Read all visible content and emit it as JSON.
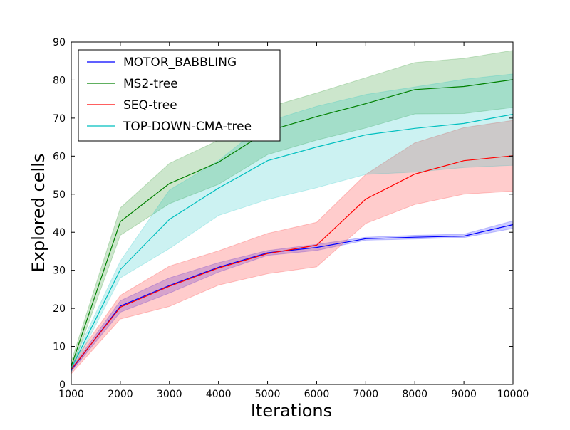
{
  "chart_data": {
    "type": "line",
    "title": "",
    "xlabel": "Iterations",
    "ylabel": "Explored cells",
    "xlim": [
      1000,
      10000
    ],
    "ylim": [
      0,
      90
    ],
    "xticks": [
      1000,
      2000,
      3000,
      4000,
      5000,
      6000,
      7000,
      8000,
      9000,
      10000
    ],
    "yticks": [
      0,
      10,
      20,
      30,
      40,
      50,
      60,
      70,
      80,
      90
    ],
    "grid": false,
    "legend_position": "top-left",
    "x": [
      1000,
      2000,
      3000,
      4000,
      5000,
      6000,
      7000,
      8000,
      9000,
      10000
    ],
    "series": [
      {
        "name": "MOTOR_BABBLING",
        "color": "#0000ff",
        "values": [
          3.8,
          20.6,
          26,
          30.8,
          34.6,
          36,
          38.3,
          38.7,
          39,
          42
        ],
        "lower": [
          3.4,
          19.0,
          24,
          29.5,
          33.9,
          35.2,
          37.9,
          38.2,
          38.6,
          41.0
        ],
        "upper": [
          4.2,
          22.0,
          28,
          32.0,
          35.2,
          36.8,
          38.7,
          39.2,
          39.5,
          43.0
        ]
      },
      {
        "name": "MS2-tree",
        "color": "#008000",
        "values": [
          4.8,
          42.8,
          52.8,
          58.4,
          66.6,
          70.4,
          73.8,
          77.5,
          78.3,
          80.1
        ],
        "lower": [
          3.6,
          39.2,
          47.5,
          52.6,
          60.4,
          64.2,
          67.4,
          71.1,
          71.2,
          72.8
        ],
        "upper": [
          6.0,
          46.4,
          58.1,
          64.2,
          72.8,
          76.6,
          80.6,
          84.6,
          85.7,
          87.8
        ]
      },
      {
        "name": "SEQ-tree",
        "color": "#ff0000",
        "values": [
          4.0,
          20.3,
          25.8,
          30.6,
          34.4,
          36.6,
          48.7,
          55.3,
          58.8,
          60.1
        ],
        "lower": [
          2.8,
          17.2,
          20.5,
          26.1,
          29.1,
          30.9,
          42.3,
          47.3,
          50.0,
          50.8
        ],
        "upper": [
          5.2,
          23.4,
          31.1,
          35.1,
          39.7,
          42.6,
          55.2,
          63.5,
          67.5,
          69.4
        ]
      },
      {
        "name": "TOP-DOWN-CMA-tree",
        "color": "#00bfbf",
        "values": [
          4.2,
          30.2,
          43.4,
          51.6,
          58.8,
          62.4,
          65.6,
          67.3,
          68.6,
          71.0
        ],
        "lower": [
          3.2,
          28.0,
          35.7,
          44.4,
          48.6,
          51.7,
          55.2,
          55.8,
          57.0,
          57.6
        ],
        "upper": [
          5.2,
          32.4,
          51.1,
          58.8,
          69.1,
          73.1,
          76.2,
          78.2,
          80.2,
          81.6
        ]
      }
    ]
  }
}
